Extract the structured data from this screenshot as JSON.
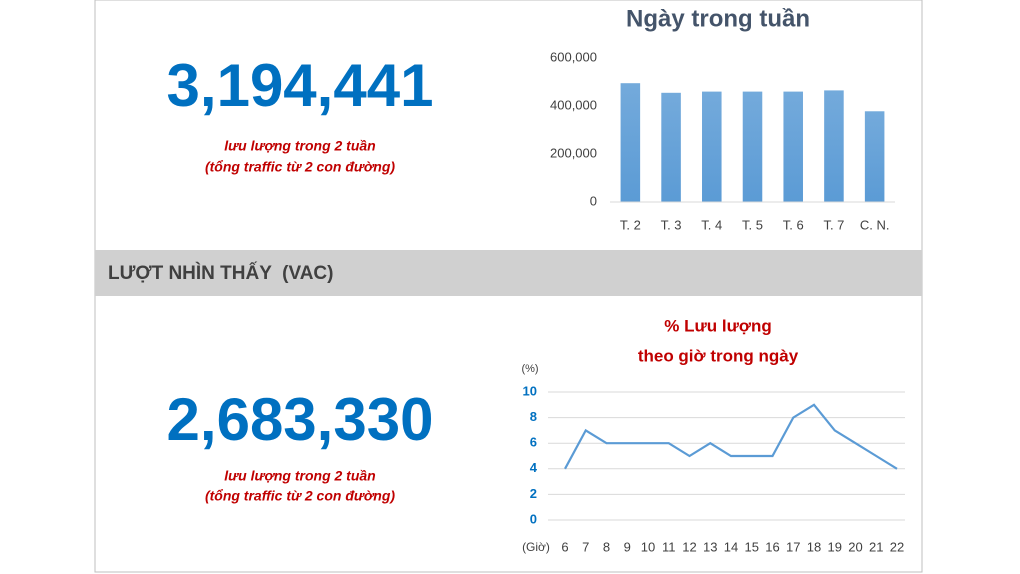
{
  "stats": [
    {
      "value": "3,194,441",
      "caption": [
        "lưu lượng trong 2 tuần",
        "(tổng traffic từ 2 con đường)"
      ]
    },
    {
      "value": "2,683,330",
      "caption": [
        "lưu lượng trong 2 tuần",
        "(tổng traffic từ 2 con đường)"
      ]
    }
  ],
  "section_title": "LƯỢT NHÌN THẤY  (VAC)",
  "chart_data": [
    {
      "type": "bar",
      "title": "Ngày trong tuần",
      "categories": [
        "T. 2",
        "T. 3",
        "T. 4",
        "T. 5",
        "T. 6",
        "T. 7",
        "C. N."
      ],
      "values": [
        495000,
        455000,
        460000,
        460000,
        460000,
        465000,
        378000
      ],
      "color": "#5b9bd5",
      "ylim": [
        0,
        600000
      ],
      "yticks": [
        0,
        {
          "value": 200000,
          "label": "200,000"
        },
        {
          "value": 400000,
          "label": "400,000"
        },
        {
          "value": 600000,
          "label": "600,000"
        }
      ],
      "grid": false
    },
    {
      "type": "line",
      "title": [
        "% Lưu lượng",
        "theo giờ trong ngày"
      ],
      "y_label": "(%)",
      "x_label": "(Giờ)",
      "x": [
        6,
        7,
        8,
        9,
        10,
        11,
        12,
        13,
        14,
        15,
        16,
        17,
        18,
        19,
        20,
        21,
        22
      ],
      "values": [
        4,
        7,
        6,
        6,
        6,
        6,
        5,
        6,
        5,
        5,
        5,
        8,
        9,
        7,
        6,
        5,
        4
      ],
      "color": "#5b9bd5",
      "xlim": [
        6,
        22
      ],
      "xticks": [
        6,
        7,
        8,
        9,
        10,
        11,
        12,
        13,
        14,
        15,
        16,
        17,
        18,
        19,
        20,
        21,
        22
      ],
      "ylim": [
        0,
        10
      ],
      "yticks": [
        0,
        2,
        4,
        6,
        8,
        10
      ],
      "grid": true
    }
  ]
}
